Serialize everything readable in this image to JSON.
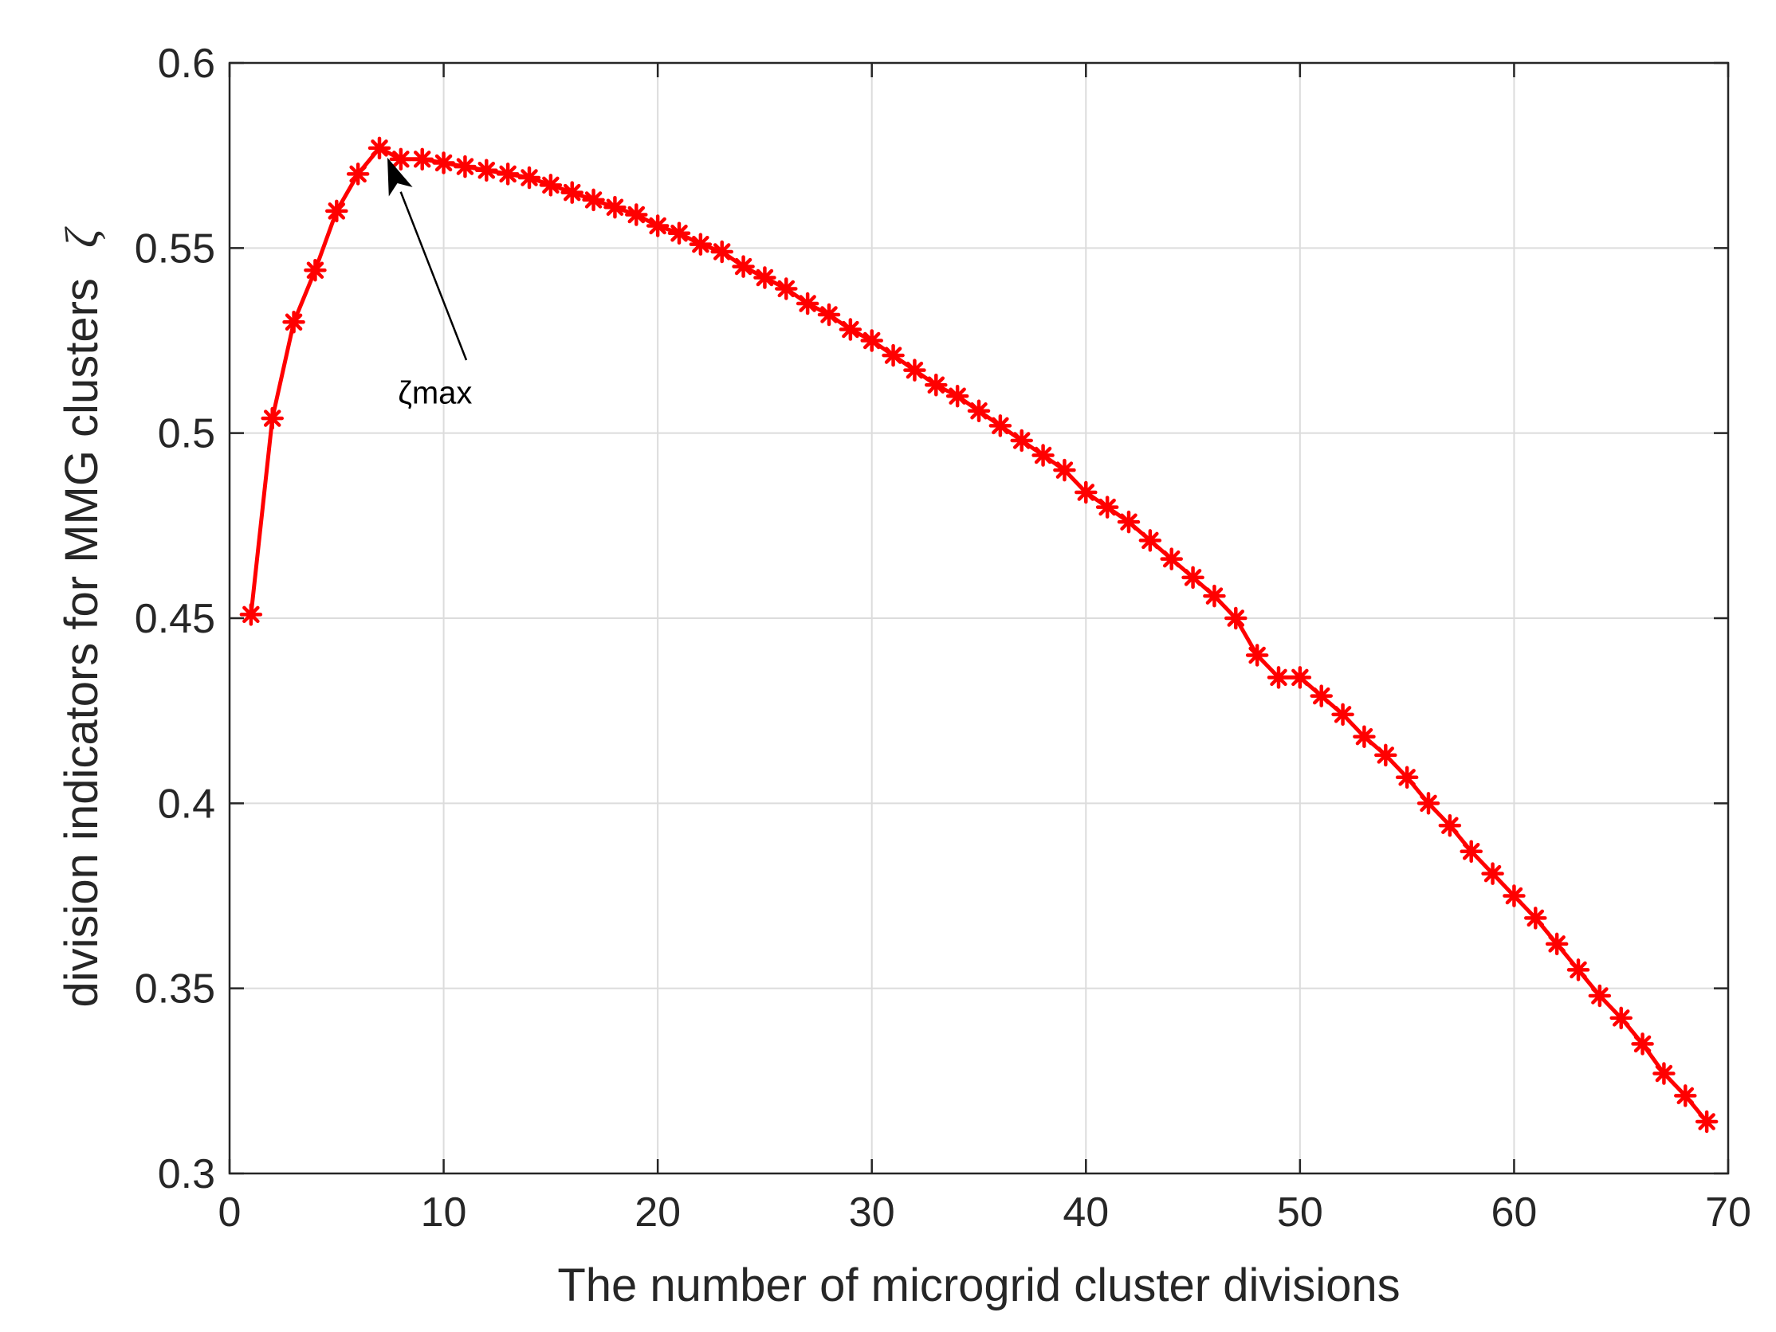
{
  "chart_data": {
    "type": "line",
    "title": "",
    "xlabel": "The number of microgrid cluster divisions",
    "ylabel": "division indicators for MMG clusters",
    "ylabel_symbol": "ζ",
    "xlim": [
      0,
      70
    ],
    "ylim": [
      0.3,
      0.6
    ],
    "x_ticks": [
      0,
      10,
      20,
      30,
      40,
      50,
      60,
      70
    ],
    "y_ticks": [
      0.3,
      0.35,
      0.4,
      0.45,
      0.5,
      0.55,
      0.6
    ],
    "x_tick_labels": [
      "0",
      "10",
      "20",
      "30",
      "40",
      "50",
      "60",
      "70"
    ],
    "y_tick_labels": [
      "0.3",
      "0.35",
      "0.4",
      "0.45",
      "0.5",
      "0.55",
      "0.6"
    ],
    "grid": true,
    "line_color": "#ff0000",
    "marker": "asterisk",
    "series": [
      {
        "x": [
          1,
          2,
          3,
          4,
          5,
          6,
          7,
          8,
          9,
          10,
          11,
          12,
          13,
          14,
          15,
          16,
          17,
          18,
          19,
          20,
          21,
          22,
          23,
          24,
          25,
          26,
          27,
          28,
          29,
          30,
          31,
          32,
          33,
          34,
          35,
          36,
          37,
          38,
          39,
          40,
          41,
          42,
          43,
          44,
          45,
          46,
          47,
          48,
          49,
          50,
          51,
          52,
          53,
          54,
          55,
          56,
          57,
          58,
          59,
          60,
          61,
          62,
          63,
          64,
          65,
          66,
          67,
          68,
          69
        ],
        "values": [
          0.451,
          0.504,
          0.53,
          0.544,
          0.56,
          0.57,
          0.577,
          0.574,
          0.574,
          0.573,
          0.572,
          0.571,
          0.57,
          0.569,
          0.567,
          0.565,
          0.563,
          0.561,
          0.559,
          0.556,
          0.554,
          0.551,
          0.549,
          0.545,
          0.542,
          0.539,
          0.535,
          0.532,
          0.528,
          0.525,
          0.521,
          0.517,
          0.513,
          0.51,
          0.506,
          0.502,
          0.498,
          0.494,
          0.49,
          0.484,
          0.48,
          0.476,
          0.471,
          0.466,
          0.461,
          0.456,
          0.45,
          0.44,
          0.434,
          0.434,
          0.429,
          0.424,
          0.418,
          0.413,
          0.407,
          0.4,
          0.394,
          0.387,
          0.381,
          0.375,
          0.369,
          0.362,
          0.355,
          0.348,
          0.342,
          0.335,
          0.327,
          0.321,
          0.314
        ]
      }
    ],
    "annotation": {
      "text": "ζmax",
      "arrow_target": {
        "x": 7,
        "y": 0.577
      },
      "text_anchor": {
        "x": 9.6,
        "y": 0.511
      }
    }
  }
}
